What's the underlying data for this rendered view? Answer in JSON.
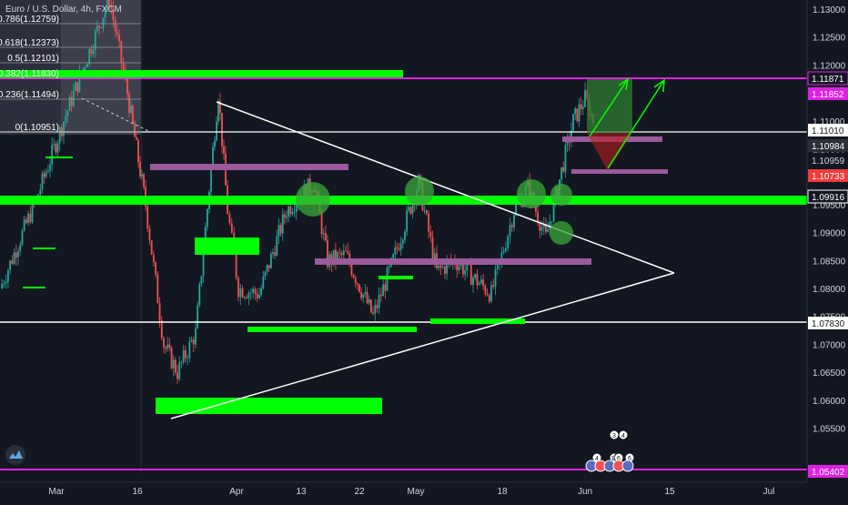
{
  "chart_title": "Euro / U.S. Dollar, 4h, FXCM",
  "colors": {
    "background": "#131722",
    "up": "#26a69a",
    "down": "#ef5350",
    "zone_green": "#00ff00",
    "zone_purple": "#9c5a9c",
    "magenta": "#e020e0",
    "white": "#ffffff",
    "fib_bg": "#3a3d4a"
  },
  "price_axis": {
    "ticks": [
      "1.13000",
      "1.12500",
      "1.12000",
      "1.11500",
      "1.11000",
      "1.10500",
      "1.10000",
      "1.09500",
      "1.09000",
      "1.08500",
      "1.08000",
      "1.07500",
      "1.07000",
      "1.06500",
      "1.06000",
      "1.05500"
    ],
    "badges": [
      {
        "text": "1.11871",
        "style": "magenta-outline"
      },
      {
        "text": "1.11852",
        "style": "magenta"
      },
      {
        "text": "1.11010",
        "style": "white"
      },
      {
        "text": "1.10984",
        "style": "dark"
      },
      {
        "text": "1.10959",
        "style": "plain"
      },
      {
        "text": "1.10733",
        "style": "red"
      },
      {
        "text": "1.09916",
        "style": "white-outline"
      },
      {
        "text": "1.07830",
        "style": "white"
      },
      {
        "text": "1.05402",
        "style": "magenta"
      }
    ]
  },
  "time_axis": {
    "labels": [
      "Mar",
      "16",
      "Apr",
      "13",
      "22",
      "May",
      "18",
      "Jun",
      "15",
      "Jul"
    ]
  },
  "fib_levels": [
    "0.786(1.12759)",
    "0.618(1.12373)",
    "0.5(1.12101)",
    "0.382(1.11830)",
    "0.236(1.11494)",
    "0(1.10951)"
  ],
  "event_badges": [
    "3",
    "4",
    "4",
    "10",
    "6",
    "6"
  ],
  "chart_data": {
    "type": "candlestick",
    "title": "Euro / U.S. Dollar, 4h, FXCM",
    "symbol": "EURUSD",
    "timeframe": "4h",
    "source": "FXCM",
    "ylim": [
      1.0535,
      1.133
    ],
    "x_labels": [
      "Mar",
      "16",
      "Apr",
      "13",
      "22",
      "May",
      "18",
      "Jun",
      "15",
      "Jul"
    ],
    "price_path": [
      [
        "Feb 26",
        1.08
      ],
      [
        "Mar 2",
        1.096
      ],
      [
        "Mar 5",
        1.11
      ],
      [
        "Mar 9",
        1.132
      ],
      [
        "Mar 12",
        1.115
      ],
      [
        "Mar 16",
        1.105
      ],
      [
        "Mar 17",
        1.095
      ],
      [
        "Mar 19",
        1.07
      ],
      [
        "Mar 20",
        1.065
      ],
      [
        "Mar 23",
        1.072
      ],
      [
        "Mar 27",
        1.098
      ],
      [
        "Mar 30",
        1.115
      ],
      [
        "Apr 1",
        1.094
      ],
      [
        "Apr 3",
        1.08
      ],
      [
        "Apr 6",
        1.079
      ],
      [
        "Apr 10",
        1.094
      ],
      [
        "Apr 15",
        1.099
      ],
      [
        "Apr 17",
        1.085
      ],
      [
        "Apr 21",
        1.086
      ],
      [
        "Apr 24",
        1.075
      ],
      [
        "Apr 28",
        1.084
      ],
      [
        "May 1",
        1.099
      ],
      [
        "May 5",
        1.083
      ],
      [
        "May 8",
        1.085
      ],
      [
        "May 14",
        1.079
      ],
      [
        "May 19",
        1.094
      ],
      [
        "May 22",
        1.098
      ],
      [
        "May 26",
        1.089
      ],
      [
        "May 29",
        1.11
      ],
      [
        "Jun 1",
        1.114
      ],
      [
        "Jun 2",
        1.1101
      ]
    ],
    "levels": [
      {
        "name": "resistance",
        "price": 1.11871
      },
      {
        "name": "support",
        "price": 1.0783
      },
      {
        "name": "support-low",
        "price": 1.05402
      },
      {
        "name": "breakout",
        "price": 1.09916
      }
    ],
    "last_price": 1.1101
  }
}
